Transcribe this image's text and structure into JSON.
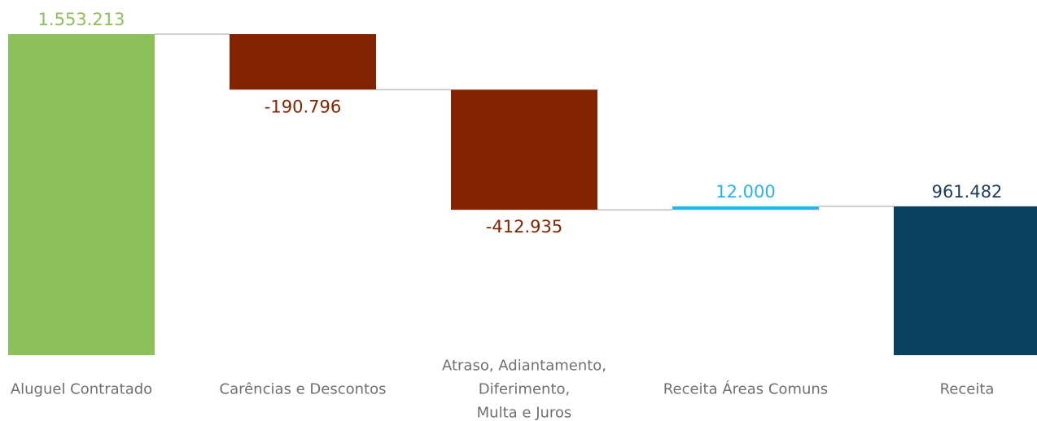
{
  "chart_data": {
    "type": "waterfall",
    "categories": [
      "Aluguel Contratado",
      "Carências e Descontos",
      "Atraso, Adiantamento,\nDiferimento,\nMulta e Juros",
      "Receita Áreas Comuns",
      "Receita"
    ],
    "measure": [
      "absolute",
      "relative",
      "relative",
      "relative",
      "total"
    ],
    "values": [
      1553213,
      -190796,
      -412935,
      12000,
      961482
    ],
    "value_labels": [
      "1.553.213",
      "-190.796",
      "-412.935",
      "12.000",
      "961.482"
    ],
    "colors": [
      "#8cc05a",
      "#832400",
      "#832400",
      "#27b5e8",
      "#0b3f5e"
    ],
    "label_colors": [
      "#8cc05a",
      "#832400",
      "#832400",
      "#27b5e8",
      "#1f3d56"
    ],
    "connector_color": "#bfbfbf",
    "ylim": [
      450000,
      1553213
    ]
  }
}
